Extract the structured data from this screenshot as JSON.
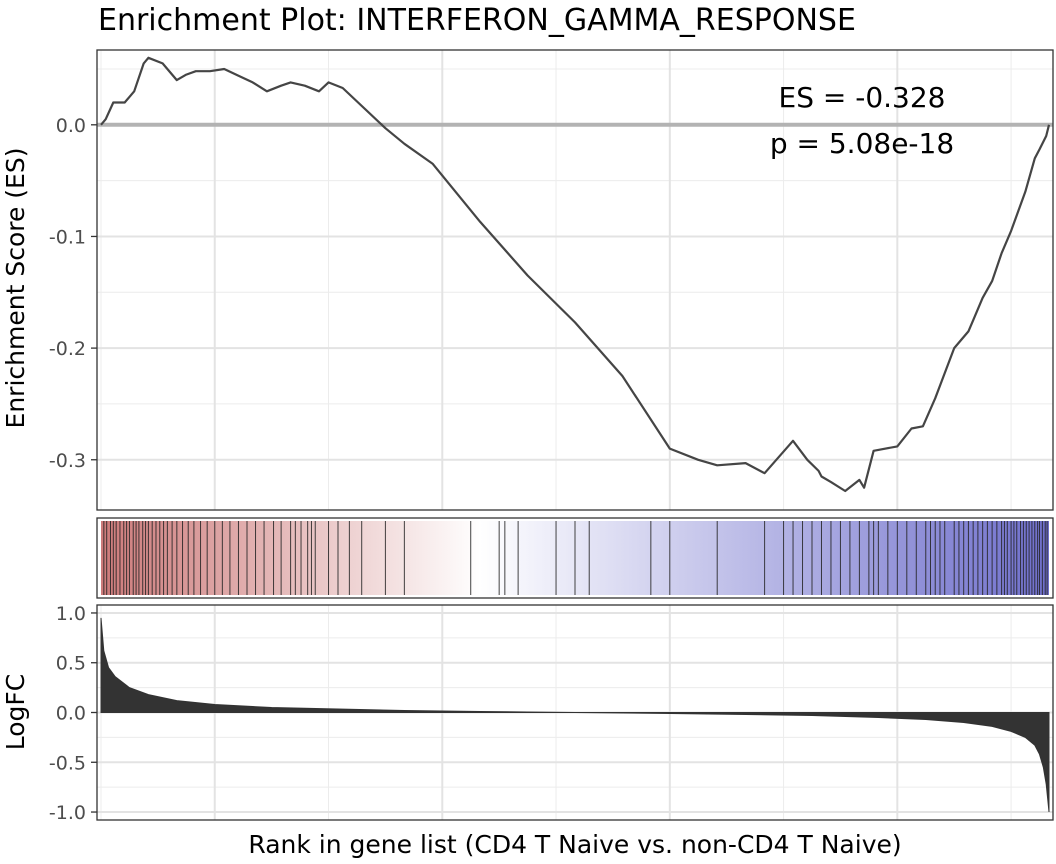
{
  "chart_data": [
    {
      "type": "line",
      "title": "Enrichment Plot: INTERFERON_GAMMA_RESPONSE",
      "ylabel": "Enrichment Score (ES)",
      "xlabel": "",
      "ylim": [
        -0.345,
        0.067
      ],
      "yticks": [
        0.0,
        -0.1,
        -0.2,
        -0.3
      ],
      "ytick_labels": [
        "0.0",
        "-0.1",
        "-0.2",
        "-0.3"
      ],
      "grid": true,
      "zero_line": true,
      "annotations": [
        "ES = -0.328",
        "p = 5.08e-18"
      ],
      "series": [
        {
          "x": [
            0,
            0.005,
            0.013,
            0.025,
            0.035,
            0.045,
            0.05,
            0.065,
            0.08,
            0.09,
            0.1,
            0.115,
            0.13,
            0.145,
            0.16,
            0.175,
            0.19,
            0.2,
            0.215,
            0.23,
            0.24,
            0.255,
            0.3,
            0.32,
            0.35,
            0.4,
            0.45,
            0.5,
            0.55,
            0.6,
            0.63,
            0.65,
            0.68,
            0.7,
            0.73,
            0.745,
            0.757,
            0.76,
            0.77,
            0.785,
            0.8,
            0.805,
            0.815,
            0.84,
            0.855,
            0.867,
            0.88,
            0.9,
            0.915,
            0.92,
            0.93,
            0.94,
            0.95,
            0.96,
            0.975,
            0.985,
            0.99,
            0.997,
            1.0
          ],
          "y": [
            0.0,
            0.005,
            0.02,
            0.02,
            0.03,
            0.055,
            0.06,
            0.055,
            0.04,
            0.045,
            0.048,
            0.048,
            0.05,
            0.044,
            0.038,
            0.03,
            0.035,
            0.038,
            0.035,
            0.03,
            0.038,
            0.033,
            -0.003,
            -0.017,
            -0.035,
            -0.087,
            -0.135,
            -0.177,
            -0.225,
            -0.29,
            -0.3,
            -0.305,
            -0.303,
            -0.312,
            -0.283,
            -0.3,
            -0.31,
            -0.315,
            -0.32,
            -0.328,
            -0.318,
            -0.325,
            -0.292,
            -0.288,
            -0.272,
            -0.27,
            -0.245,
            -0.2,
            -0.185,
            -0.175,
            -0.155,
            -0.14,
            -0.115,
            -0.095,
            -0.06,
            -0.03,
            -0.022,
            -0.01,
            0.0
          ]
        }
      ]
    },
    {
      "type": "heatmap",
      "title": "",
      "colorscale": [
        "#cd7a7a",
        "#ffffff",
        "#6f6fcc"
      ],
      "grid": false,
      "gene_hits": [
        0.003,
        0.006,
        0.01,
        0.013,
        0.016,
        0.02,
        0.024,
        0.027,
        0.03,
        0.034,
        0.037,
        0.04,
        0.044,
        0.047,
        0.05,
        0.054,
        0.058,
        0.062,
        0.066,
        0.07,
        0.075,
        0.08,
        0.086,
        0.092,
        0.098,
        0.105,
        0.112,
        0.12,
        0.128,
        0.136,
        0.145,
        0.154,
        0.163,
        0.172,
        0.182,
        0.19,
        0.2,
        0.205,
        0.211,
        0.218,
        0.222,
        0.226,
        0.24,
        0.25,
        0.262,
        0.275,
        0.3,
        0.32,
        0.39,
        0.42,
        0.426,
        0.44,
        0.48,
        0.5,
        0.515,
        0.58,
        0.6,
        0.65,
        0.7,
        0.72,
        0.73,
        0.74,
        0.75,
        0.76,
        0.77,
        0.78,
        0.79,
        0.8,
        0.81,
        0.815,
        0.82,
        0.83,
        0.84,
        0.85,
        0.86,
        0.87,
        0.875,
        0.88,
        0.885,
        0.89,
        0.9,
        0.905,
        0.91,
        0.915,
        0.92,
        0.925,
        0.93,
        0.935,
        0.94,
        0.945,
        0.95,
        0.953,
        0.956,
        0.96,
        0.963,
        0.966,
        0.97,
        0.973,
        0.976,
        0.979,
        0.982,
        0.985,
        0.988,
        0.99,
        0.993,
        0.996,
        0.998
      ]
    },
    {
      "type": "area",
      "title": "",
      "ylabel": "LogFC",
      "xlabel": "Rank in gene list (CD4 T Naive vs. non-CD4 T Naive)",
      "ylim": [
        -1.08,
        1.08
      ],
      "yticks": [
        1.0,
        0.5,
        0.0,
        -0.5,
        -1.0
      ],
      "ytick_labels": [
        "1.0",
        "0.5",
        "0.0",
        "-0.5",
        "-1.0"
      ],
      "grid": true,
      "series": [
        {
          "x": [
            0,
            0.003,
            0.008,
            0.015,
            0.03,
            0.05,
            0.08,
            0.12,
            0.18,
            0.25,
            0.32,
            0.4,
            0.45,
            0.5,
            0.55,
            0.6,
            0.68,
            0.75,
            0.82,
            0.87,
            0.91,
            0.94,
            0.96,
            0.975,
            0.985,
            0.99,
            0.994,
            0.997,
            1.0
          ],
          "y": [
            0.95,
            0.62,
            0.45,
            0.36,
            0.25,
            0.18,
            0.12,
            0.08,
            0.05,
            0.035,
            0.02,
            0.01,
            0.005,
            0.0,
            -0.005,
            -0.01,
            -0.02,
            -0.03,
            -0.05,
            -0.07,
            -0.1,
            -0.14,
            -0.19,
            -0.25,
            -0.33,
            -0.42,
            -0.55,
            -0.72,
            -1.0
          ]
        }
      ]
    }
  ]
}
